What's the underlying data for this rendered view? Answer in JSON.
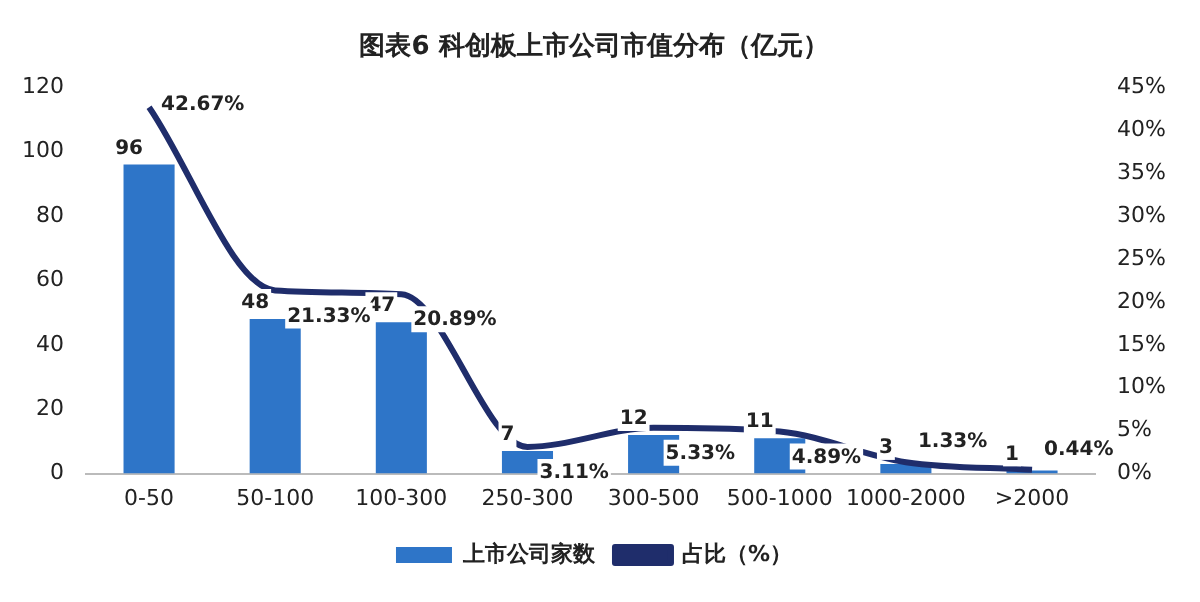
{
  "chart_data": {
    "type": "bar",
    "title": "图表6 科创板上市公司市值分布（亿元）",
    "categories": [
      "0-50",
      "50-100",
      "100-300",
      "250-300",
      "300-500",
      "500-1000",
      "1000-2000",
      ">2000"
    ],
    "series": [
      {
        "name": "上市公司家数",
        "type": "bar",
        "color": "#2e75c8",
        "values": [
          96,
          48,
          47,
          7,
          12,
          11,
          3,
          1
        ],
        "value_labels": [
          "96",
          "48",
          "47",
          "7",
          "12",
          "11",
          "3",
          "1"
        ]
      },
      {
        "name": "占比（%）",
        "type": "line",
        "axis": "y2",
        "color": "#1f2d6b",
        "values": [
          42.67,
          21.33,
          20.89,
          3.11,
          5.33,
          4.89,
          1.33,
          0.44
        ],
        "value_labels": [
          "42.67%",
          "21.33%",
          "20.89%",
          "3.11%",
          "5.33%",
          "4.89%",
          "1.33%",
          "0.44%"
        ]
      }
    ],
    "ylim": [
      0,
      120
    ],
    "yticks": [
      0,
      20,
      40,
      60,
      80,
      100,
      120
    ],
    "y2lim": [
      0,
      45
    ],
    "y2ticks": [
      {
        "value": 0,
        "label": "0%"
      },
      {
        "value": 5,
        "label": "5%"
      },
      {
        "value": 10,
        "label": "10%"
      },
      {
        "value": 15,
        "label": "15%"
      },
      {
        "value": 20,
        "label": "20%"
      },
      {
        "value": 25,
        "label": "25%"
      },
      {
        "value": 30,
        "label": "30%"
      },
      {
        "value": 35,
        "label": "35%"
      },
      {
        "value": 40,
        "label": "40%"
      },
      {
        "value": 45,
        "label": "45%"
      }
    ],
    "grid": false,
    "legend": "bottom",
    "marker": "none",
    "line_style": "solid"
  }
}
